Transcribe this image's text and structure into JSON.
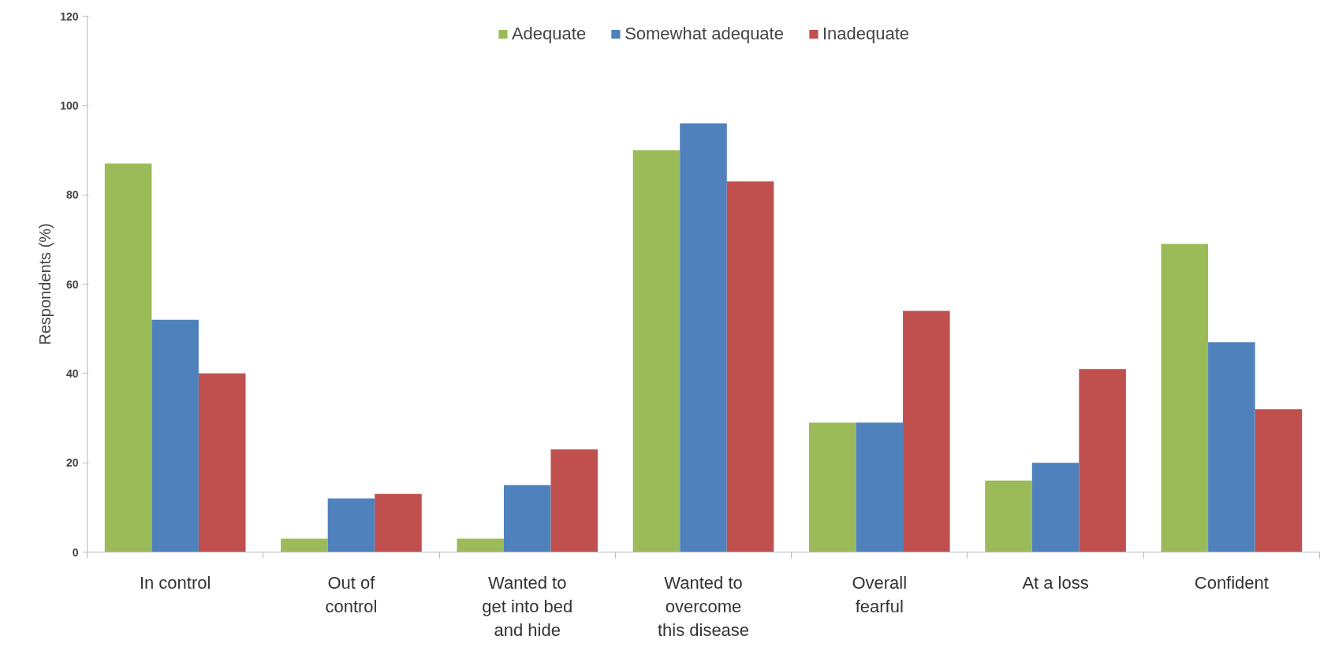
{
  "chart_data": {
    "type": "bar",
    "ylabel": "Respondents (%)",
    "categories": [
      "In control",
      "Out of control",
      "Wanted to get into bed and hide",
      "Wanted to overcome this disease",
      "Overall fearful",
      "At a loss",
      "Confident"
    ],
    "series": [
      {
        "name": "Adequate",
        "color": "#9bbb59",
        "values": [
          87,
          3,
          3,
          90,
          29,
          16,
          69
        ]
      },
      {
        "name": "Somewhat adequate",
        "color": "#4f81bd",
        "values": [
          52,
          12,
          15,
          96,
          29,
          20,
          47
        ]
      },
      {
        "name": "Inadequate",
        "color": "#c0504d",
        "values": [
          40,
          13,
          23,
          83,
          54,
          41,
          32
        ]
      }
    ],
    "ylim": [
      0,
      120
    ],
    "yticks": [
      0,
      20,
      40,
      60,
      80,
      100,
      120
    ],
    "grid": false,
    "legend": "top"
  }
}
